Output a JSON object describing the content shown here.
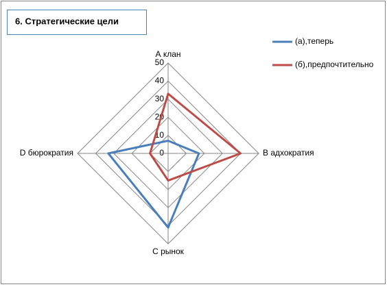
{
  "chart_data": {
    "type": "radar",
    "title": "6. Стратегические цели",
    "categories": [
      "А клан",
      "В адхократия",
      "С рынок",
      "D бюрократия"
    ],
    "series": [
      {
        "name": "(а),теперь",
        "color": "#4a7ebb",
        "values": [
          7,
          17,
          41,
          33
        ]
      },
      {
        "name": "(б),предпочтительно",
        "color": "#be4b48",
        "values": [
          33,
          40,
          15,
          10
        ]
      }
    ],
    "ylim": [
      0,
      50
    ],
    "yticks": [
      0,
      10,
      20,
      30,
      40,
      50
    ],
    "grid": true,
    "legend": "right"
  }
}
